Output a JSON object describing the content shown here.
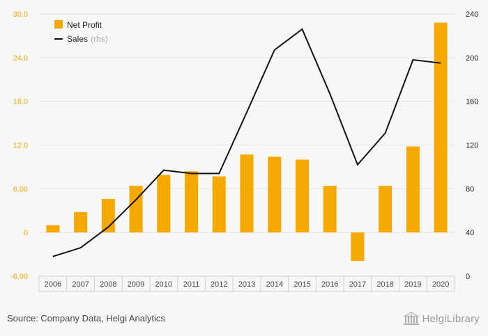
{
  "chart_data": {
    "type": "bar+line",
    "categories": [
      "2006",
      "2007",
      "2008",
      "2009",
      "2010",
      "2011",
      "2012",
      "2013",
      "2014",
      "2015",
      "2016",
      "2017",
      "2018",
      "2019",
      "2020"
    ],
    "series": [
      {
        "name": "Net Profit",
        "type": "bar",
        "axis": "left",
        "color": "#f5a800",
        "values": [
          1.0,
          2.8,
          4.6,
          6.4,
          7.9,
          8.4,
          7.7,
          10.7,
          10.4,
          10.0,
          6.4,
          -3.9,
          6.4,
          11.8,
          28.8
        ]
      },
      {
        "name": "Sales",
        "name_suffix": "(rhs)",
        "type": "line",
        "axis": "right",
        "color": "#111111",
        "values": [
          18,
          26,
          45,
          70,
          97,
          94,
          94,
          150,
          207,
          226,
          167,
          102,
          131,
          198,
          195
        ]
      }
    ],
    "left_axis": {
      "min": -6,
      "max": 30,
      "ticks": [
        "-6.00",
        "0",
        "6.00",
        "12.0",
        "18.0",
        "24.0",
        "30.0"
      ],
      "tick_values": [
        -6,
        0,
        6,
        12,
        18,
        24,
        30
      ],
      "color": "#f5a800"
    },
    "right_axis": {
      "min": 0,
      "max": 240,
      "ticks": [
        "0",
        "40",
        "80",
        "120",
        "160",
        "200",
        "240"
      ],
      "tick_values": [
        0,
        40,
        80,
        120,
        160,
        200,
        240
      ]
    },
    "grid": true,
    "legend_position": "top-left"
  },
  "footer": {
    "source": "Source: Company Data, Helgi Analytics",
    "brand": "HelgiLibrary"
  }
}
